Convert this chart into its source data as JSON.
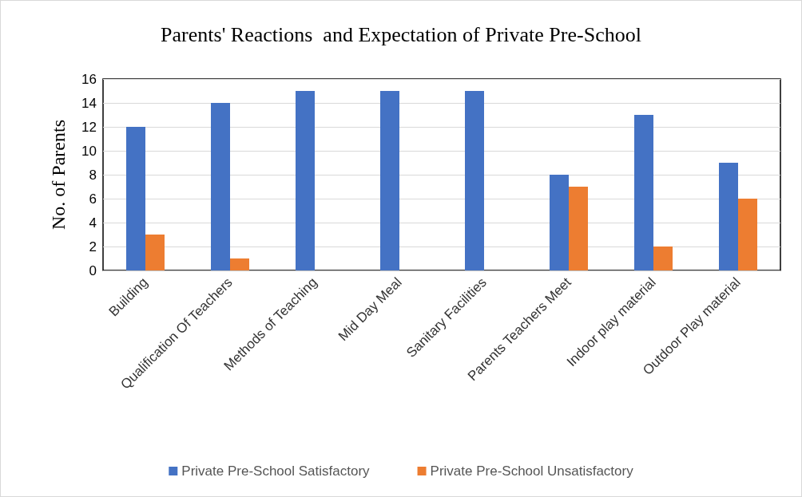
{
  "chart_data": {
    "type": "bar",
    "title": "Parents' Reactions  and Expectation of Private Pre-School",
    "ylabel": "No. of Parents",
    "categories": [
      "Building",
      "Qualification Of Teachers",
      "Methods of Teaching",
      "Mid Day Meal",
      "Sanitary Facilities",
      "Parents Teachers Meet",
      "Indoor play material",
      "Outdoor Play material"
    ],
    "series": [
      {
        "name": "Private Pre-School Satisfactory",
        "color": "#4472c4",
        "values": [
          12,
          14,
          15,
          15,
          15,
          8,
          13,
          9
        ]
      },
      {
        "name": "Private Pre-School Unsatisfactory",
        "color": "#ed7d31",
        "values": [
          3,
          1,
          0,
          0,
          0,
          7,
          2,
          6
        ]
      }
    ],
    "ylim": [
      0,
      16
    ],
    "yticks": [
      0,
      2,
      4,
      6,
      8,
      10,
      12,
      14,
      16
    ],
    "grid": "y",
    "legend": "bottom"
  }
}
